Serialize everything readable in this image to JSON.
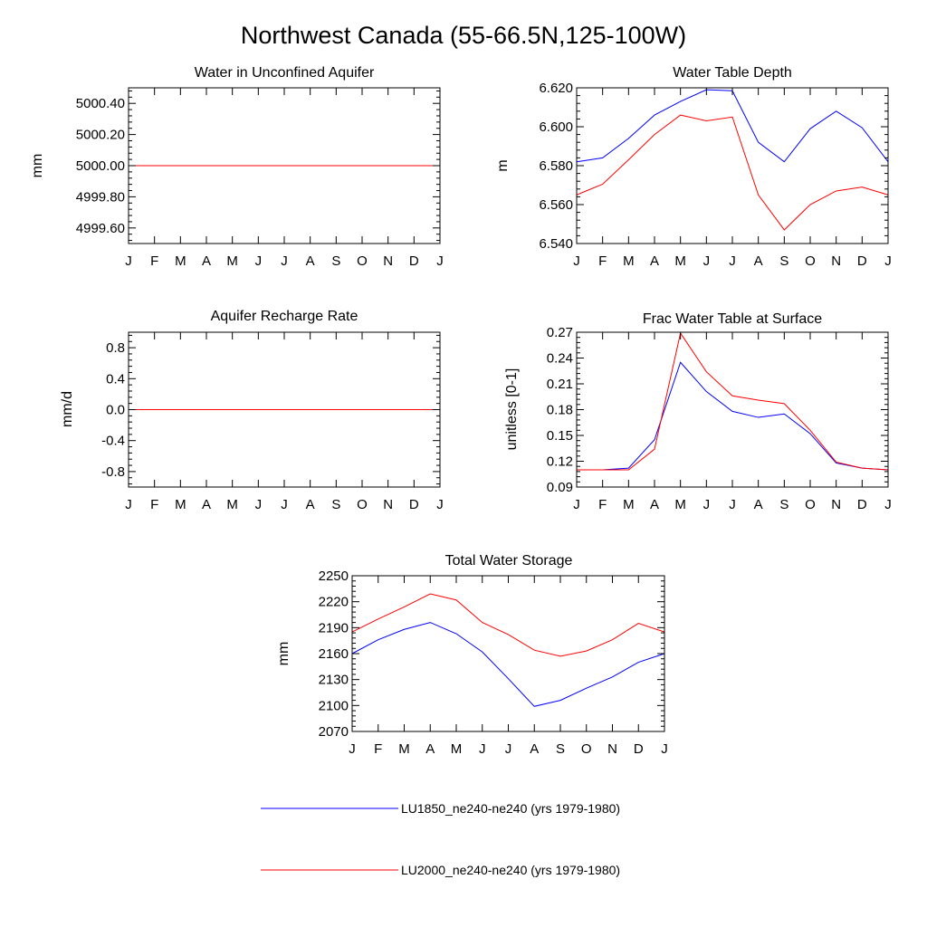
{
  "figure": {
    "title": "Northwest Canada (55-66.5N,125-100W)"
  },
  "legend": {
    "items": [
      {
        "label": "LU1850_ne240-ne240 (yrs 1979-1980)",
        "color": "#0000ff"
      },
      {
        "label": "LU2000_ne240-ne240 (yrs 1979-1980)",
        "color": "#ff0000"
      }
    ]
  },
  "chart_data": [
    {
      "type": "line",
      "title": "Water in Unconfined Aquifer",
      "xlabel": "",
      "ylabel": "mm",
      "x": [
        "J",
        "F",
        "M",
        "A",
        "M",
        "J",
        "J",
        "A",
        "S",
        "O",
        "N",
        "D",
        "J"
      ],
      "ylim": [
        4999.5,
        5000.5
      ],
      "yticks": [
        4999.6,
        4999.8,
        5000.0,
        5000.2,
        5000.4
      ],
      "ytick_labels": [
        "4999.60",
        "4999.80",
        "5000.00",
        "5000.20",
        "5000.40"
      ],
      "series": [
        {
          "name": "LU1850_ne240-ne240 (yrs 1979-1980)",
          "color": "#0000ff",
          "values": [
            5000.0,
            5000.0,
            5000.0,
            5000.0,
            5000.0,
            5000.0,
            5000.0,
            5000.0,
            5000.0,
            5000.0,
            5000.0,
            5000.0,
            5000.0
          ]
        },
        {
          "name": "LU2000_ne240-ne240 (yrs 1979-1980)",
          "color": "#ff0000",
          "values": [
            5000.0,
            5000.0,
            5000.0,
            5000.0,
            5000.0,
            5000.0,
            5000.0,
            5000.0,
            5000.0,
            5000.0,
            5000.0,
            5000.0,
            5000.0
          ]
        }
      ]
    },
    {
      "type": "line",
      "title": "Water Table Depth",
      "xlabel": "",
      "ylabel": "m",
      "x": [
        "J",
        "F",
        "M",
        "A",
        "M",
        "J",
        "J",
        "A",
        "S",
        "O",
        "N",
        "D",
        "J"
      ],
      "ylim": [
        6.54,
        6.62
      ],
      "yticks": [
        6.54,
        6.56,
        6.58,
        6.6,
        6.62
      ],
      "ytick_labels": [
        "6.540",
        "6.560",
        "6.580",
        "6.600",
        "6.620"
      ],
      "series": [
        {
          "name": "LU1850_ne240-ne240 (yrs 1979-1980)",
          "color": "#0000ff",
          "values": [
            6.582,
            6.584,
            6.594,
            6.606,
            6.613,
            6.619,
            6.6185,
            6.592,
            6.582,
            6.599,
            6.608,
            6.5995,
            6.582
          ]
        },
        {
          "name": "LU2000_ne240-ne240 (yrs 1979-1980)",
          "color": "#ff0000",
          "values": [
            6.565,
            6.5705,
            6.583,
            6.596,
            6.606,
            6.603,
            6.605,
            6.565,
            6.547,
            6.56,
            6.567,
            6.569,
            6.565
          ]
        }
      ]
    },
    {
      "type": "line",
      "title": "Aquifer Recharge Rate",
      "xlabel": "",
      "ylabel": "mm/d",
      "x": [
        "J",
        "F",
        "M",
        "A",
        "M",
        "J",
        "J",
        "A",
        "S",
        "O",
        "N",
        "D",
        "J"
      ],
      "ylim": [
        -1.0,
        1.0
      ],
      "yticks": [
        -0.8,
        -0.4,
        0.0,
        0.4,
        0.8
      ],
      "ytick_labels": [
        "-0.8",
        "-0.4",
        "0.0",
        "0.4",
        "0.8"
      ],
      "series": [
        {
          "name": "LU1850_ne240-ne240 (yrs 1979-1980)",
          "color": "#0000ff",
          "values": [
            0,
            0,
            0,
            0,
            0,
            0,
            0,
            0,
            0,
            0,
            0,
            0,
            0
          ]
        },
        {
          "name": "LU2000_ne240-ne240 (yrs 1979-1980)",
          "color": "#ff0000",
          "values": [
            0,
            0,
            0,
            0,
            0,
            0,
            0,
            0,
            0,
            0,
            0,
            0,
            0
          ]
        }
      ]
    },
    {
      "type": "line",
      "title": "Frac Water Table at Surface",
      "xlabel": "",
      "ylabel": "unitless [0-1]",
      "x": [
        "J",
        "F",
        "M",
        "A",
        "M",
        "J",
        "J",
        "A",
        "S",
        "O",
        "N",
        "D",
        "J"
      ],
      "ylim": [
        0.09,
        0.27
      ],
      "yticks": [
        0.09,
        0.12,
        0.15,
        0.18,
        0.21,
        0.24,
        0.27
      ],
      "ytick_labels": [
        "0.09",
        "0.12",
        "0.15",
        "0.18",
        "0.21",
        "0.24",
        "0.27"
      ],
      "series": [
        {
          "name": "LU1850_ne240-ne240 (yrs 1979-1980)",
          "color": "#0000ff",
          "values": [
            0.11,
            0.11,
            0.112,
            0.145,
            0.235,
            0.201,
            0.178,
            0.171,
            0.175,
            0.152,
            0.118,
            0.112,
            0.11
          ]
        },
        {
          "name": "LU2000_ne240-ne240 (yrs 1979-1980)",
          "color": "#ff0000",
          "values": [
            0.11,
            0.11,
            0.11,
            0.134,
            0.269,
            0.224,
            0.196,
            0.191,
            0.187,
            0.156,
            0.119,
            0.112,
            0.11
          ]
        }
      ]
    },
    {
      "type": "line",
      "title": "Total Water Storage",
      "xlabel": "",
      "ylabel": "mm",
      "x": [
        "J",
        "F",
        "M",
        "A",
        "M",
        "J",
        "J",
        "A",
        "S",
        "O",
        "N",
        "D",
        "J"
      ],
      "ylim": [
        2070,
        2250
      ],
      "yticks": [
        2070,
        2100,
        2130,
        2160,
        2190,
        2220,
        2250
      ],
      "ytick_labels": [
        "2070",
        "2100",
        "2130",
        "2160",
        "2190",
        "2220",
        "2250"
      ],
      "series": [
        {
          "name": "LU1850_ne240-ne240 (yrs 1979-1980)",
          "color": "#0000ff",
          "values": [
            2160,
            2176,
            2188,
            2196,
            2183,
            2162,
            2131,
            2099,
            2106,
            2120,
            2133,
            2150,
            2160
          ]
        },
        {
          "name": "LU2000_ne240-ne240 (yrs 1979-1980)",
          "color": "#ff0000",
          "values": [
            2185,
            2200,
            2214,
            2229,
            2222,
            2196,
            2182,
            2164,
            2157,
            2163,
            2176,
            2195,
            2185
          ]
        }
      ]
    }
  ]
}
